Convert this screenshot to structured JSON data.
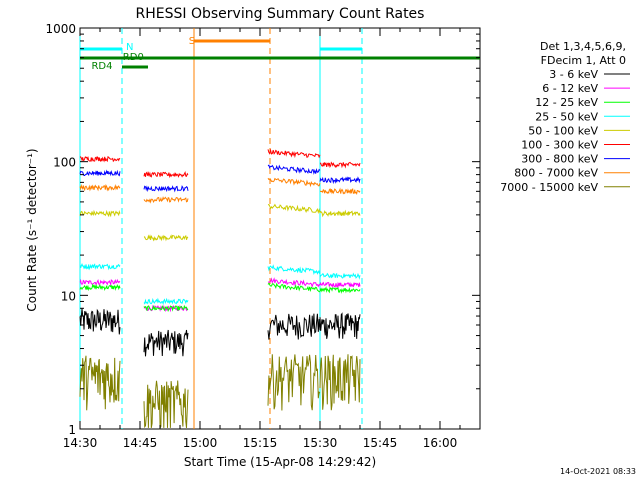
{
  "chart_data": {
    "type": "line",
    "title": "RHESSI Observing Summary Count Rates",
    "xlabel": "Start Time (15-Apr-08 14:29:42)",
    "ylabel": "Count Rate (s⁻¹ detector⁻¹)",
    "yscale": "log",
    "ylim": [
      1,
      1000
    ],
    "xlim_minutes_after_1430": [
      0,
      100
    ],
    "x_tick_labels": [
      "14:30",
      "14:45",
      "15:00",
      "15:15",
      "15:30",
      "15:45",
      "16:00"
    ],
    "y_tick_labels": [
      "1",
      "10",
      "100",
      "1000"
    ],
    "legend_header": [
      "Det 1,3,4,5,6,9,",
      "FDecim 1, Att 0"
    ],
    "legend_position": "right",
    "timestamp": "14-Oct-2021 08:33",
    "grid": false,
    "series": [
      {
        "name": "3 - 6 keV",
        "color": "#000000",
        "values": [
          6.5,
          4.5,
          6,
          6
        ]
      },
      {
        "name": "6 - 12 keV",
        "color": "#ff00ff",
        "values": [
          12.5,
          8,
          12,
          12
        ]
      },
      {
        "name": "12 - 25 keV",
        "color": "#00ff00",
        "values": [
          11.5,
          8,
          11,
          11
        ]
      },
      {
        "name": "25 - 50 keV",
        "color": "#00ffff",
        "values": [
          16.5,
          9,
          15,
          14
        ]
      },
      {
        "name": "50 - 100 keV",
        "color": "#cccc00",
        "values": [
          41,
          27,
          43,
          41
        ]
      },
      {
        "name": "100 - 300 keV",
        "color": "#ff0000",
        "values": [
          105,
          80,
          110,
          95
        ]
      },
      {
        "name": "300 - 800 keV",
        "color": "#0000ff",
        "values": [
          82,
          63,
          84,
          73
        ]
      },
      {
        "name": "800 - 7000 keV",
        "color": "#ff8000",
        "values": [
          64,
          52,
          68,
          60
        ]
      },
      {
        "name": "7000 - 15000 keV",
        "color": "#808000",
        "values": [
          2.5,
          1.6,
          2.5,
          2.5
        ]
      }
    ],
    "series_segments_minutes": [
      [
        0,
        10
      ],
      [
        16,
        27
      ],
      [
        47,
        60
      ],
      [
        60,
        70
      ]
    ],
    "annotations": [
      {
        "label": "N",
        "color": "#00ffff"
      },
      {
        "label": "RD0",
        "color": "#008000"
      },
      {
        "label": "RD4",
        "color": "#008000"
      },
      {
        "label": "S",
        "color": "#ff8000"
      }
    ],
    "vertical_markers_minutes": [
      {
        "t": 0,
        "color": "#00ffff",
        "style": "solid"
      },
      {
        "t": 10.5,
        "color": "#00ffff",
        "style": "dashed"
      },
      {
        "t": 28.5,
        "color": "#ff8000",
        "style": "solid"
      },
      {
        "t": 47.5,
        "color": "#ff8000",
        "style": "dashed"
      },
      {
        "t": 60,
        "color": "#00ffff",
        "style": "solid"
      },
      {
        "t": 70.5,
        "color": "#00ffff",
        "style": "dashed"
      }
    ]
  }
}
